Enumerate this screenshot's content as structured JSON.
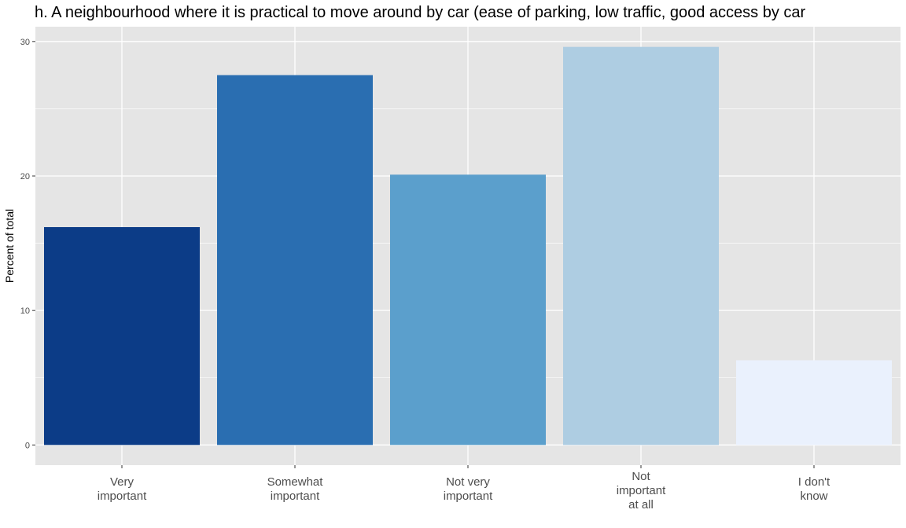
{
  "chart_data": {
    "type": "bar",
    "title": "h. A neighbourhood where it is practical to move around by car (ease of parking, low traffic, good access by car",
    "xlabel": "",
    "ylabel": "Percent of total",
    "categories": [
      [
        "Very",
        "important"
      ],
      [
        "Somewhat",
        "important"
      ],
      [
        "Not very",
        "important"
      ],
      [
        "Not",
        "important",
        "at all"
      ],
      [
        "I don't",
        "know"
      ]
    ],
    "values": [
      16.2,
      27.5,
      20.1,
      29.6,
      6.3
    ],
    "colors": [
      "#0c3c87",
      "#2a6eb1",
      "#5b9fcc",
      "#aecde2",
      "#eaf1fd"
    ],
    "ylim": [
      -1.5,
      31.1
    ],
    "yticks": [
      0,
      10,
      20,
      30
    ],
    "grid": true,
    "panel_background": "#e5e5e5",
    "legend": "none"
  }
}
